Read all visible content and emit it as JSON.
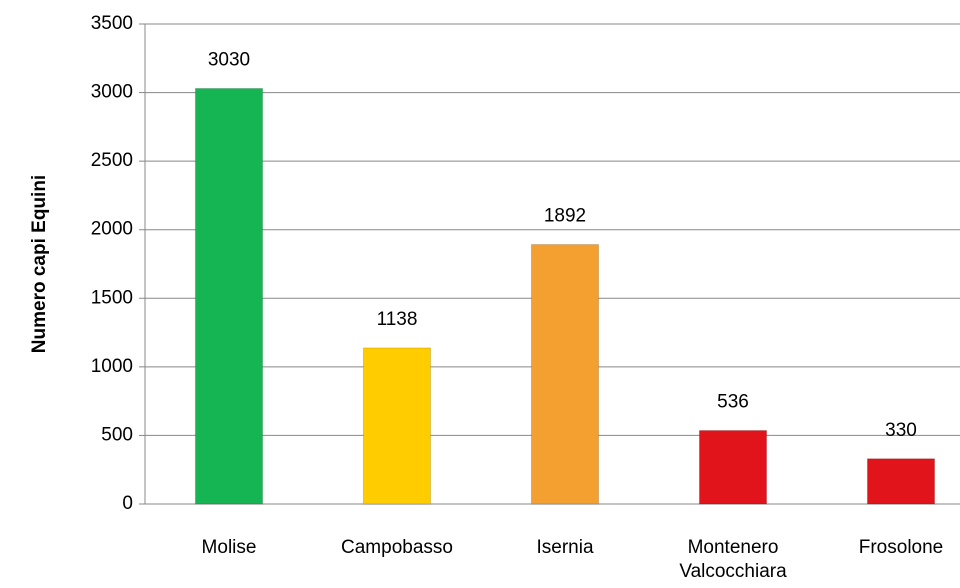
{
  "chart_data": {
    "type": "bar",
    "y_label": "Numero capi Equini",
    "categories": [
      "Molise",
      "Campobasso",
      "Isernia",
      "Montenero Valcocchiara",
      "Frosolone"
    ],
    "values": [
      3030,
      1138,
      1892,
      536,
      330
    ],
    "colors": [
      "#16b554",
      "#ffcc00",
      "#f4a030",
      "#e0141a",
      "#e0141a"
    ],
    "ylim": [
      0,
      3500
    ],
    "yticks": [
      0,
      500,
      1000,
      1500,
      2000,
      2500,
      3000,
      3500
    ],
    "grid": true
  }
}
